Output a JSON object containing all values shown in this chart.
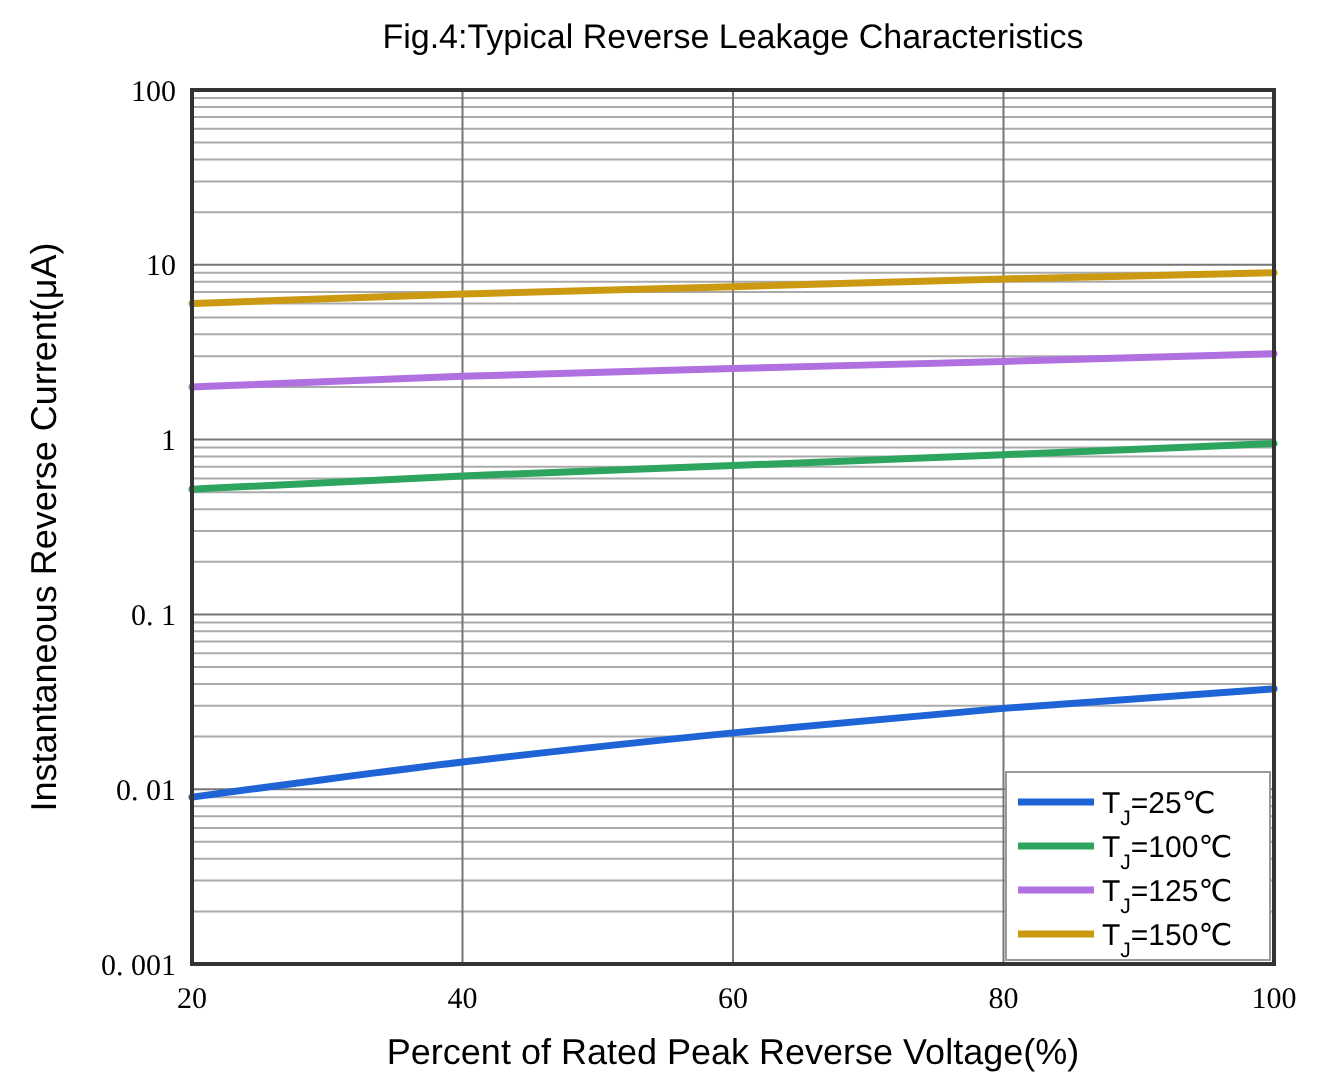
{
  "chart_data": {
    "type": "line",
    "title": "Fig.4:Typical Reverse Leakage Characteristics",
    "xlabel": "Percent of Rated Peak Reverse Voltage(%)",
    "ylabel": "Instantaneous Reverse Current(μA)",
    "x": [
      20,
      40,
      60,
      80,
      100
    ],
    "series": [
      {
        "name": "T$_{J}$=25℃",
        "color": "#1f64d6",
        "values": [
          0.009,
          0.0143,
          0.021,
          0.029,
          0.0375
        ]
      },
      {
        "name": "T$_{J}$=100℃",
        "color": "#2ea55e",
        "values": [
          0.52,
          0.62,
          0.71,
          0.82,
          0.95
        ]
      },
      {
        "name": "T$_{J}$=125℃",
        "color": "#b070e0",
        "values": [
          2,
          2.3,
          2.55,
          2.8,
          3.1
        ]
      },
      {
        "name": "T$_{J}$=150℃",
        "color": "#cc9a12",
        "values": [
          6,
          6.8,
          7.5,
          8.3,
          9
        ]
      }
    ],
    "xlim": [
      20,
      100
    ],
    "xticks": [
      20,
      40,
      60,
      80,
      100
    ],
    "ylim": [
      0.001,
      100
    ],
    "yticks": [
      {
        "value": 0.001,
        "label": "0. 001"
      },
      {
        "value": 0.01,
        "label": "0. 01"
      },
      {
        "value": 0.1,
        "label": "0. 1"
      },
      1,
      10,
      100
    ],
    "log": "y",
    "grid": true,
    "legend": "bottom right",
    "marker": "none",
    "line_style": "solid"
  }
}
